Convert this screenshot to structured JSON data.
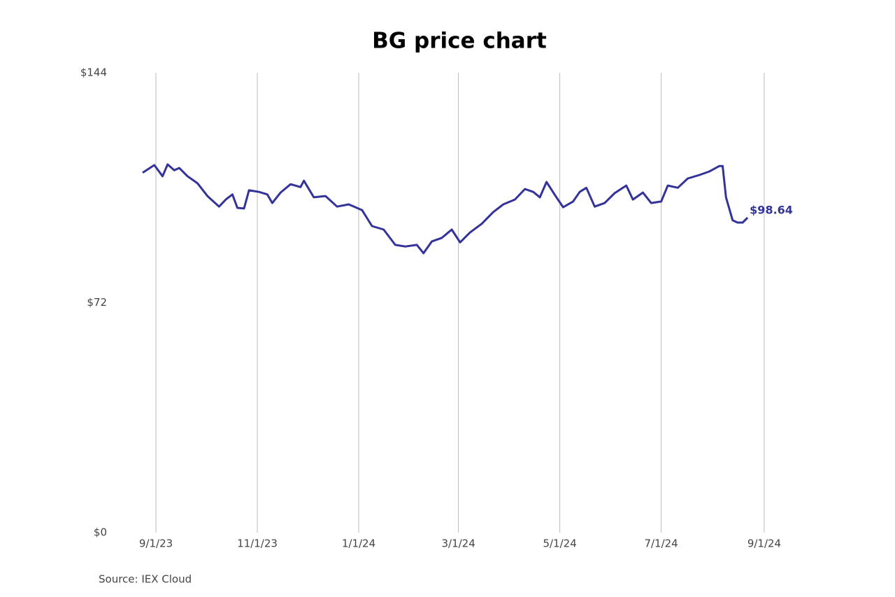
{
  "chart_data": {
    "type": "line",
    "title": "BG price chart",
    "source": "Source: IEX Cloud",
    "x": [
      "2023-08-24",
      "2023-08-31",
      "2023-09-05",
      "2023-09-08",
      "2023-09-12",
      "2023-09-15",
      "2023-09-20",
      "2023-09-26",
      "2023-10-02",
      "2023-10-09",
      "2023-10-13",
      "2023-10-17",
      "2023-10-20",
      "2023-10-24",
      "2023-10-27",
      "2023-11-02",
      "2023-11-07",
      "2023-11-10",
      "2023-11-15",
      "2023-11-21",
      "2023-11-27",
      "2023-11-29",
      "2023-12-05",
      "2023-12-12",
      "2023-12-19",
      "2023-12-26",
      "2024-01-03",
      "2024-01-09",
      "2024-01-16",
      "2024-01-23",
      "2024-01-29",
      "2024-02-05",
      "2024-02-09",
      "2024-02-14",
      "2024-02-20",
      "2024-02-26",
      "2024-03-02",
      "2024-03-08",
      "2024-03-15",
      "2024-03-22",
      "2024-03-28",
      "2024-04-04",
      "2024-04-10",
      "2024-04-15",
      "2024-04-19",
      "2024-04-23",
      "2024-04-29",
      "2024-05-03",
      "2024-05-09",
      "2024-05-13",
      "2024-05-17",
      "2024-05-22",
      "2024-05-28",
      "2024-06-03",
      "2024-06-10",
      "2024-06-14",
      "2024-06-20",
      "2024-06-25",
      "2024-07-01",
      "2024-07-05",
      "2024-07-11",
      "2024-07-17",
      "2024-07-24",
      "2024-07-30",
      "2024-08-05",
      "2024-08-07",
      "2024-08-09",
      "2024-08-13",
      "2024-08-16",
      "2024-08-19",
      "2024-08-22"
    ],
    "series": [
      {
        "name": "BG",
        "color": "#333399",
        "values": [
          112.7,
          115.1,
          111.6,
          115.3,
          113.5,
          114.2,
          111.6,
          109.4,
          105.4,
          102.1,
          104.3,
          105.9,
          101.7,
          101.5,
          107.2,
          106.7,
          105.9,
          103.2,
          106.5,
          109.1,
          108.2,
          110.2,
          105.0,
          105.4,
          102.1,
          102.8,
          101.0,
          96.0,
          94.9,
          90.1,
          89.6,
          90.1,
          87.5,
          91.2,
          92.3,
          94.9,
          90.9,
          94.0,
          96.7,
          100.4,
          102.8,
          104.3,
          107.6,
          106.7,
          105.0,
          109.8,
          105.0,
          101.9,
          103.7,
          106.7,
          108.0,
          102.1,
          103.2,
          106.3,
          108.7,
          104.3,
          106.5,
          103.2,
          103.7,
          108.7,
          108.0,
          110.9,
          112.0,
          113.1,
          114.8,
          114.8,
          105.0,
          97.8,
          97.1,
          97.1,
          98.64
        ],
        "value_labels": [
          null,
          null,
          null,
          null,
          null,
          null,
          null,
          null,
          null,
          null,
          null,
          null,
          null,
          null,
          null,
          null,
          null,
          null,
          null,
          null,
          null,
          null,
          null,
          null,
          null,
          null,
          null,
          null,
          null,
          null,
          null,
          null,
          null,
          null,
          null,
          null,
          null,
          null,
          null,
          null,
          null,
          null,
          null,
          null,
          null,
          null,
          null,
          null,
          null,
          null,
          null,
          null,
          null,
          null,
          null,
          null,
          null,
          null,
          null,
          null,
          null,
          null,
          null,
          null,
          null,
          null,
          null,
          null,
          null,
          null,
          "$98.64"
        ]
      }
    ],
    "xlim": [
      "2023-08-16",
      "2024-09-25"
    ],
    "xticks": [
      {
        "value": "2023-09-01",
        "label": "9/1/23"
      },
      {
        "value": "2023-11-01",
        "label": "11/1/23"
      },
      {
        "value": "2024-01-01",
        "label": "1/1/24"
      },
      {
        "value": "2024-03-01",
        "label": "3/1/24"
      },
      {
        "value": "2024-05-01",
        "label": "5/1/24"
      },
      {
        "value": "2024-07-01",
        "label": "7/1/24"
      },
      {
        "value": "2024-09-01",
        "label": "9/1/24"
      }
    ],
    "ylim": [
      0,
      144
    ],
    "yticks": [
      {
        "value": 0,
        "label": "$0"
      },
      {
        "value": 72,
        "label": "$72"
      },
      {
        "value": 144,
        "label": "$144"
      }
    ],
    "grid": "x"
  }
}
